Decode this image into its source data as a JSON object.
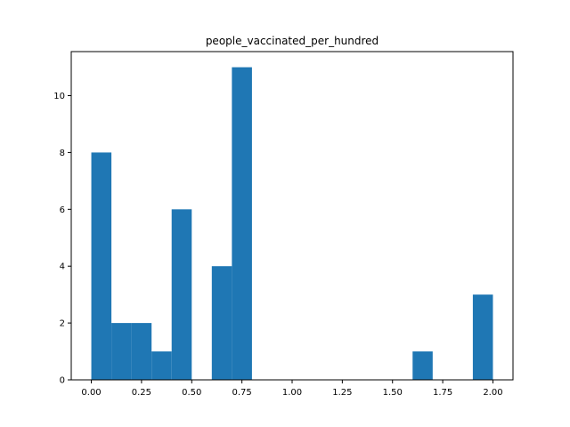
{
  "chart_data": {
    "type": "bar",
    "title": "people_vaccinated_per_hundred",
    "xlabel": "",
    "ylabel": "",
    "xlim": [
      -0.1,
      2.1
    ],
    "ylim": [
      0,
      11.55
    ],
    "grid": false,
    "legend": "none",
    "bar_color": "#1f77b4",
    "bins": [
      {
        "x0": 0.0,
        "x1": 0.1,
        "count": 8
      },
      {
        "x0": 0.1,
        "x1": 0.2,
        "count": 2
      },
      {
        "x0": 0.2,
        "x1": 0.3,
        "count": 2
      },
      {
        "x0": 0.3,
        "x1": 0.4,
        "count": 1
      },
      {
        "x0": 0.4,
        "x1": 0.5,
        "count": 6
      },
      {
        "x0": 0.5,
        "x1": 0.6,
        "count": 0
      },
      {
        "x0": 0.6,
        "x1": 0.7,
        "count": 4
      },
      {
        "x0": 0.7,
        "x1": 0.8,
        "count": 11
      },
      {
        "x0": 0.8,
        "x1": 0.9,
        "count": 0
      },
      {
        "x0": 0.9,
        "x1": 1.0,
        "count": 0
      },
      {
        "x0": 1.0,
        "x1": 1.1,
        "count": 0
      },
      {
        "x0": 1.1,
        "x1": 1.2,
        "count": 0
      },
      {
        "x0": 1.2,
        "x1": 1.3,
        "count": 0
      },
      {
        "x0": 1.3,
        "x1": 1.4,
        "count": 0
      },
      {
        "x0": 1.4,
        "x1": 1.5,
        "count": 0
      },
      {
        "x0": 1.5,
        "x1": 1.6,
        "count": 0
      },
      {
        "x0": 1.6,
        "x1": 1.7,
        "count": 1
      },
      {
        "x0": 1.7,
        "x1": 1.8,
        "count": 0
      },
      {
        "x0": 1.8,
        "x1": 1.9,
        "count": 0
      },
      {
        "x0": 1.9,
        "x1": 2.0,
        "count": 3
      }
    ],
    "x_ticks": [
      {
        "value": 0.0,
        "label": "0.00"
      },
      {
        "value": 0.25,
        "label": "0.25"
      },
      {
        "value": 0.5,
        "label": "0.50"
      },
      {
        "value": 0.75,
        "label": "0.75"
      },
      {
        "value": 1.0,
        "label": "1.00"
      },
      {
        "value": 1.25,
        "label": "1.25"
      },
      {
        "value": 1.5,
        "label": "1.50"
      },
      {
        "value": 1.75,
        "label": "1.75"
      },
      {
        "value": 2.0,
        "label": "2.00"
      }
    ],
    "y_ticks": [
      {
        "value": 0,
        "label": "0"
      },
      {
        "value": 2,
        "label": "2"
      },
      {
        "value": 4,
        "label": "4"
      },
      {
        "value": 6,
        "label": "6"
      },
      {
        "value": 8,
        "label": "8"
      },
      {
        "value": 10,
        "label": "10"
      }
    ]
  }
}
